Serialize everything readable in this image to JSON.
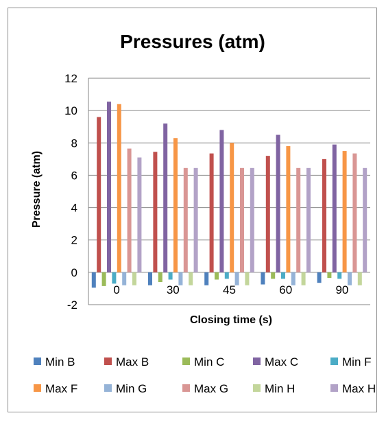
{
  "chart_data": {
    "type": "bar",
    "title": "Pressures (atm)",
    "xlabel": "Closing time (s)",
    "ylabel": "Pressure (atm)",
    "categories": [
      "0",
      "30",
      "45",
      "60",
      "90"
    ],
    "ylim": [
      -2,
      12
    ],
    "yticks": [
      -2,
      0,
      2,
      4,
      6,
      8,
      10,
      12
    ],
    "grid": "horizontal",
    "legend_position": "bottom",
    "series": [
      {
        "name": "Min B",
        "color": "#4f81bd",
        "values": [
          -0.95,
          -0.8,
          -0.8,
          -0.75,
          -0.65
        ]
      },
      {
        "name": "Max B",
        "color": "#c0504d",
        "values": [
          9.6,
          7.45,
          7.35,
          7.2,
          7.0
        ]
      },
      {
        "name": "Min C",
        "color": "#9bbb59",
        "values": [
          -0.85,
          -0.6,
          -0.45,
          -0.4,
          -0.35
        ]
      },
      {
        "name": "Max C",
        "color": "#8064a2",
        "values": [
          10.55,
          9.2,
          8.8,
          8.5,
          7.9
        ]
      },
      {
        "name": "Min F",
        "color": "#4bacc6",
        "values": [
          -0.7,
          -0.45,
          -0.4,
          -0.4,
          -0.4
        ]
      },
      {
        "name": "Max F",
        "color": "#f79646",
        "values": [
          10.4,
          8.3,
          8.0,
          7.8,
          7.5
        ]
      },
      {
        "name": "Min G",
        "color": "#95b3d7",
        "values": [
          -0.8,
          -0.8,
          -0.8,
          -0.8,
          -0.8
        ]
      },
      {
        "name": "Max G",
        "color": "#d99694",
        "values": [
          7.65,
          6.45,
          6.45,
          6.45,
          7.35
        ]
      },
      {
        "name": "Min H",
        "color": "#c3d69b",
        "values": [
          -0.8,
          -0.8,
          -0.8,
          -0.8,
          -0.8
        ]
      },
      {
        "name": "Max H",
        "color": "#b2a2c7",
        "values": [
          7.1,
          6.45,
          6.45,
          6.45,
          6.45
        ]
      }
    ]
  }
}
